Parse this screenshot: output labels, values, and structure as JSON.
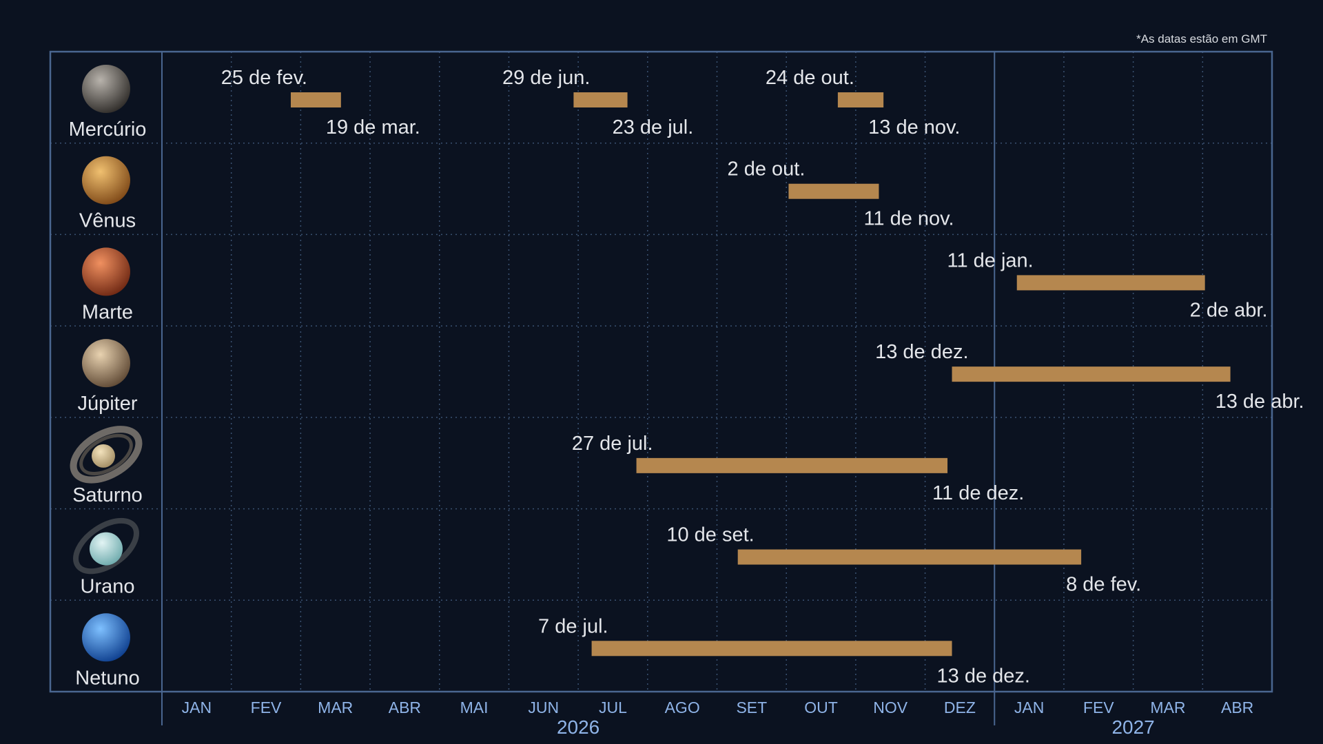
{
  "footnote": "*As datas estão em GMT",
  "chart_data": {
    "type": "gantt",
    "x_range": [
      "2026-01-01",
      "2027-05-01"
    ],
    "grid": true,
    "month_ticks": [
      "JAN",
      "FEV",
      "MAR",
      "ABR",
      "MAI",
      "JUN",
      "JUL",
      "AGO",
      "SET",
      "OUT",
      "NOV",
      "DEZ",
      "JAN",
      "FEV",
      "MAR",
      "ABR"
    ],
    "years": [
      {
        "label": "2026",
        "months": 12
      },
      {
        "label": "2027",
        "months": 4
      }
    ],
    "colors": {
      "background": "#0b1220",
      "frame": "#4a6690",
      "grid": "#3b5272",
      "bar": "#b5874f",
      "text": "#e4e6ea",
      "axis_text": "#8fb4e8"
    },
    "rows": [
      {
        "name": "Mercúrio",
        "icon": "mercury-planet-icon",
        "colors": [
          "#b8b3ac",
          "#2a2724"
        ],
        "periods": [
          {
            "start": "2026-02-25",
            "end": "2026-03-19",
            "start_label": "25 de fev.",
            "end_label": "19 de mar."
          },
          {
            "start": "2026-06-29",
            "end": "2026-07-23",
            "start_label": "29 de jun.",
            "end_label": "23 de jul."
          },
          {
            "start": "2026-10-24",
            "end": "2026-11-13",
            "start_label": "24 de out.",
            "end_label": "13 de nov."
          }
        ]
      },
      {
        "name": "Vênus",
        "icon": "venus-planet-icon",
        "colors": [
          "#f0c070",
          "#7a4414"
        ],
        "periods": [
          {
            "start": "2026-10-02",
            "end": "2026-11-11",
            "start_label": "2 de out.",
            "end_label": "11 de nov."
          }
        ]
      },
      {
        "name": "Marte",
        "icon": "mars-planet-icon",
        "colors": [
          "#f09060",
          "#6a2410"
        ],
        "periods": [
          {
            "start": "2027-01-11",
            "end": "2027-04-02",
            "start_label": "11 de jan.",
            "end_label": "2 de abr."
          }
        ]
      },
      {
        "name": "Júpiter",
        "icon": "jupiter-planet-icon",
        "colors": [
          "#e8d2b0",
          "#5a4430"
        ],
        "periods": [
          {
            "start": "2026-12-13",
            "end": "2027-04-13",
            "start_label": "13 de dez.",
            "end_label": "13 de abr."
          }
        ]
      },
      {
        "name": "Saturno",
        "icon": "saturn-planet-icon",
        "colors": [
          "#f2e2bc",
          "#a08a60"
        ],
        "periods": [
          {
            "start": "2026-07-27",
            "end": "2026-12-11",
            "start_label": "27 de jul.",
            "end_label": "11 de dez."
          }
        ]
      },
      {
        "name": "Urano",
        "icon": "uranus-planet-icon",
        "colors": [
          "#e2f4f4",
          "#6aa8aa"
        ],
        "periods": [
          {
            "start": "2026-09-10",
            "end": "2027-02-08",
            "start_label": "10 de set.",
            "end_label": "8 de fev."
          }
        ]
      },
      {
        "name": "Netuno",
        "icon": "neptune-planet-icon",
        "colors": [
          "#7ec0ff",
          "#0a3a8a"
        ],
        "periods": [
          {
            "start": "2026-07-07",
            "end": "2026-12-13",
            "start_label": "7 de jul.",
            "end_label": "13 de dez."
          }
        ]
      }
    ]
  }
}
